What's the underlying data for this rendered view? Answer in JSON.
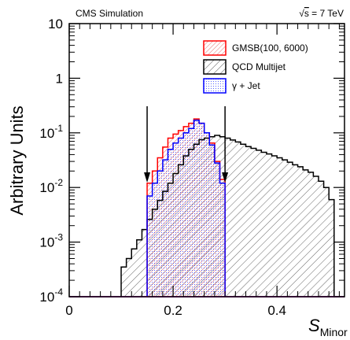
{
  "chart_data": {
    "type": "histogram",
    "header_left": "CMS Simulation",
    "header_right": {
      "sqrt_symbol": "√",
      "s": "s",
      "rest": " = 7 TeV"
    },
    "ylabel": "Arbitrary Units",
    "xlabel": {
      "main": "S",
      "sub": "Minor"
    },
    "xlim": [
      0,
      0.53
    ],
    "ylim": [
      0.0001,
      10
    ],
    "y_log_scale": true,
    "x_ticks": [
      {
        "value": 0,
        "label": "0"
      },
      {
        "value": 0.2,
        "label": "0.2"
      },
      {
        "value": 0.4,
        "label": "0.4"
      }
    ],
    "y_ticks": [
      {
        "exp": -4,
        "base": "10",
        "sup": "-4"
      },
      {
        "exp": -3,
        "base": "10",
        "sup": "-3"
      },
      {
        "exp": -2,
        "base": "10",
        "sup": "-2"
      },
      {
        "exp": -1,
        "base": "10",
        "sup": "-1"
      },
      {
        "exp": 0,
        "base": "1",
        "sup": ""
      },
      {
        "exp": 1,
        "base": "10",
        "sup": ""
      }
    ],
    "bin_edges": [
      0.1,
      0.11,
      0.12,
      0.13,
      0.14,
      0.15,
      0.16,
      0.17,
      0.18,
      0.19,
      0.2,
      0.21,
      0.22,
      0.23,
      0.24,
      0.25,
      0.26,
      0.27,
      0.28,
      0.29,
      0.3,
      0.31,
      0.32,
      0.33,
      0.34,
      0.35,
      0.36,
      0.37,
      0.38,
      0.39,
      0.4,
      0.41,
      0.42,
      0.43,
      0.44,
      0.45,
      0.46,
      0.47,
      0.48,
      0.49,
      0.5,
      0.51
    ],
    "arrows_at": [
      0.15,
      0.3
    ],
    "series": [
      {
        "name": "QCD Multijet",
        "color": "#000000",
        "pattern": "diagonal-hatch",
        "values": [
          0.00035,
          0.0005,
          0.00075,
          0.0011,
          0.0017,
          0.0026,
          0.004,
          0.0058,
          0.0085,
          0.012,
          0.018,
          0.026,
          0.038,
          0.05,
          0.062,
          0.075,
          0.08,
          0.085,
          0.09,
          0.085,
          0.08,
          0.074,
          0.068,
          0.062,
          0.056,
          0.052,
          0.048,
          0.044,
          0.041,
          0.038,
          0.035,
          0.032,
          0.029,
          0.026,
          0.024,
          0.021,
          0.019,
          0.016,
          0.013,
          0.01,
          0.006
        ]
      },
      {
        "name": "GMSB(100, 6000)",
        "color": "#ff0000",
        "pattern": "fine-hatch",
        "values": [
          0,
          0,
          0,
          0,
          0,
          0.012,
          0.02,
          0.035,
          0.055,
          0.08,
          0.095,
          0.11,
          0.13,
          0.15,
          0.18,
          0.15,
          0.1,
          0.065,
          0.03,
          0.014,
          0,
          0,
          0,
          0,
          0,
          0,
          0,
          0,
          0,
          0,
          0,
          0,
          0,
          0,
          0,
          0,
          0,
          0,
          0,
          0,
          0
        ]
      },
      {
        "name": "γ + Jet",
        "color": "#0000ff",
        "pattern": "dots",
        "values": [
          0,
          0,
          0,
          0,
          0,
          0.007,
          0.012,
          0.02,
          0.032,
          0.05,
          0.065,
          0.08,
          0.1,
          0.12,
          0.17,
          0.15,
          0.1,
          0.06,
          0.028,
          0.012,
          0,
          0,
          0,
          0,
          0,
          0,
          0,
          0,
          0,
          0,
          0,
          0,
          0,
          0,
          0,
          0,
          0,
          0,
          0,
          0,
          0
        ]
      }
    ]
  }
}
